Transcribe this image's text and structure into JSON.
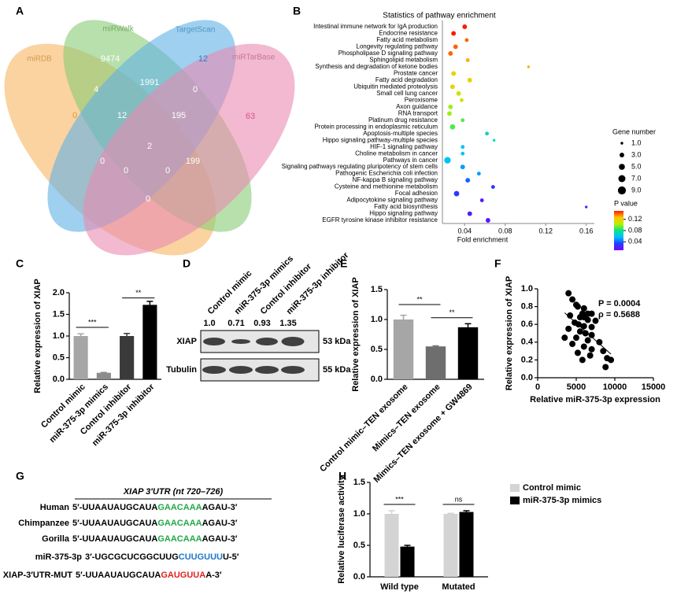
{
  "panel_labels": [
    "A",
    "B",
    "C",
    "D",
    "E",
    "F",
    "G",
    "H"
  ],
  "venn": {
    "sets": [
      {
        "name": "miRDB",
        "color": "#f7b560"
      },
      {
        "name": "miRWalk",
        "color": "#88cc74"
      },
      {
        "name": "TargetScan",
        "color": "#5fb0e6"
      },
      {
        "name": "miRTarBase",
        "color": "#e98ab0"
      }
    ],
    "counts": [
      0,
      9474,
      12,
      63,
      4,
      1991,
      0,
      12,
      195,
      2,
      0,
      0,
      0,
      199,
      0
    ]
  },
  "chart_data": [
    {
      "type": "bubble",
      "title": "Statistics of pathway enrichment",
      "categories": [
        "Intestinal immune network for IgA production",
        "Endocrine resistance",
        "Fatty acid metabolism",
        "Longevity regulating pathway",
        "Phospholipase D signaling pathway",
        "Sphingolipid metabolism",
        "Synthesis and degradation of ketone bodies",
        "Prostate cancer",
        "Fatty acid degradation",
        "Ubiquitin mediated proteolysis",
        "Small cell lung cancer",
        "Peroxisome",
        "Axon guidance",
        "RNA transport",
        "Platinum drug resistance",
        "Protein processing in endoplasmic reticulum",
        "Apoptosis-multiple species",
        "Hippo signaling pathway-multiple species",
        "HIF-1 signaling pathway",
        "Choline metabolism in cancer",
        "Pathways in cancer",
        "Signaling pathways regulating pluripotency of stem cells",
        "Pathogenic Escherichia coli infection",
        "NF-kappa B signaling pathway",
        "Cysteine and methionine metabolism",
        "Focal adhesion",
        "Adipocytokine signaling pathway",
        "Fatty acid biosynthesis",
        "Hippo signaling pathway",
        "EGFR tyrosine kinase inhibitor resistance"
      ],
      "values": [
        0.04,
        0.029,
        0.042,
        0.031,
        0.026,
        0.043,
        0.103,
        0.029,
        0.045,
        0.028,
        0.034,
        0.037,
        0.026,
        0.025,
        0.038,
        0.028,
        0.062,
        0.069,
        0.038,
        0.038,
        0.023,
        0.038,
        0.054,
        0.043,
        0.068,
        0.032,
        0.057,
        0.16,
        0.045,
        0.063
      ],
      "sizes": [
        3,
        3,
        2,
        3,
        3,
        2,
        1,
        3,
        3,
        3,
        3,
        2,
        3,
        3,
        2,
        4,
        2,
        1,
        2,
        2,
        6,
        3,
        2,
        3,
        2,
        4,
        2,
        1,
        3,
        3
      ],
      "pvalues": [
        0.15,
        0.15,
        0.14,
        0.14,
        0.14,
        0.13,
        0.13,
        0.12,
        0.12,
        0.12,
        0.11,
        0.11,
        0.1,
        0.1,
        0.09,
        0.09,
        0.07,
        0.07,
        0.06,
        0.06,
        0.06,
        0.05,
        0.05,
        0.04,
        0.03,
        0.03,
        0.02,
        0.02,
        0.02,
        0.02
      ],
      "xlim": [
        0.018,
        0.168
      ],
      "xticks": [
        0.04,
        0.08,
        0.12,
        0.16
      ],
      "xlabel": "Fold enrichment",
      "size_legend": {
        "title": "Gene number",
        "values": [
          {
            "value": 1,
            "label": "1.0"
          },
          {
            "value": 3,
            "label": "3.0"
          },
          {
            "value": 5,
            "label": "5.0"
          },
          {
            "value": 7,
            "label": "7.0"
          },
          {
            "value": 9,
            "label": "9.0"
          }
        ]
      },
      "color_legend": {
        "title": "P value",
        "ticks": [
          0.04,
          0.08,
          0.12
        ]
      },
      "colorscale": [
        "#7a00ff",
        "#1e40ff",
        "#00bfff",
        "#00e68a",
        "#b8f000",
        "#ffc400",
        "#ff1a00"
      ],
      "clim": [
        0.01,
        0.15
      ]
    },
    {
      "type": "bar",
      "categories": [
        "Control mimic",
        "miR-375-3p mimics",
        "Control inhibitor",
        "miR-375-3p inhibitor"
      ],
      "values": [
        1.0,
        0.15,
        1.0,
        1.72
      ],
      "errors": [
        0.05,
        0.01,
        0.06,
        0.08
      ],
      "colors": [
        "#a6a6a6",
        "#8c8c8c",
        "#3a3a3a",
        "#000000"
      ],
      "ylim": [
        0,
        2
      ],
      "yticks": [
        {
          "value": 0,
          "label": "0.0"
        },
        0.5,
        {
          "value": 1,
          "label": "1.0"
        },
        1.5,
        {
          "value": 2,
          "label": "2.0"
        }
      ],
      "ylabel": "Relative expression of  XIAP",
      "annotations": [
        "***",
        "**"
      ]
    },
    {
      "type": "bar",
      "categories": [
        "Control mimic–TEN exosome",
        "Mimics–TEN exosome",
        "Mimics–TEN exosome + GW4869"
      ],
      "values": [
        1.0,
        0.55,
        0.87
      ],
      "errors": [
        0.07,
        0.01,
        0.06
      ],
      "colors": [
        "#a6a6a6",
        "#6e6e6e",
        "#000000"
      ],
      "ylim": [
        0,
        1.5
      ],
      "yticks": [
        {
          "value": 0,
          "label": "0.0"
        },
        0.5,
        {
          "value": 1,
          "label": "1.0"
        },
        1.5
      ],
      "ylabel": "Relative expression of  XIAP",
      "annotations": [
        "**",
        "**"
      ]
    },
    {
      "type": "scatter",
      "x": [
        4000,
        4500,
        5000,
        5200,
        6000,
        5800,
        6500,
        7000,
        4200,
        5500,
        6500,
        7500,
        4800,
        5300,
        6000,
        7000,
        4000,
        5500,
        6200,
        7000,
        3500,
        5000,
        6500,
        8000,
        4500,
        6000,
        7000,
        8500,
        5200,
        6800,
        9000,
        9500,
        5800,
        8800,
        6000
      ],
      "values": [
        0.95,
        0.88,
        0.82,
        0.8,
        0.78,
        0.72,
        0.72,
        0.72,
        0.7,
        0.68,
        0.65,
        0.64,
        0.62,
        0.6,
        0.58,
        0.57,
        0.55,
        0.52,
        0.5,
        0.48,
        0.45,
        0.45,
        0.42,
        0.4,
        0.38,
        0.35,
        0.32,
        0.3,
        0.28,
        0.25,
        0.22,
        0.2,
        0.2,
        0.12,
        0.68
      ],
      "color": "#000000",
      "trendline": true,
      "xlim": [
        0,
        15000
      ],
      "xticks": [
        0,
        5000,
        10000,
        15000
      ],
      "ylim": [
        0,
        1
      ],
      "yticks": [
        {
          "value": 0,
          "label": "0.0"
        },
        0.2,
        0.4,
        0.6,
        0.8,
        {
          "value": 1,
          "label": "1.0"
        }
      ],
      "xlabel": "Relative miR-375-3p expression",
      "ylabel": "Relative expression of  XIAP",
      "annotations": [
        "P = 0.0004",
        "ρ = 0.5688"
      ]
    },
    {
      "type": "grouped_bar",
      "categories": [
        "Wild type",
        "Mutated"
      ],
      "series": [
        {
          "name": "Control mimic",
          "color": "#d4d4d4",
          "values": [
            1.0,
            1.0
          ],
          "errors": [
            0.05,
            0.01
          ]
        },
        {
          "name": "miR-375-3p mimics",
          "color": "#000000",
          "values": [
            0.48,
            1.03
          ],
          "errors": [
            0.02,
            0.02
          ]
        }
      ],
      "ylim": [
        0,
        1.5
      ],
      "yticks": [
        {
          "value": 0,
          "label": "0.0"
        },
        0.5,
        {
          "value": 1,
          "label": "1.0"
        },
        1.5
      ],
      "ylabel": "Relative luciferase activity",
      "annotations": [
        "***",
        "ns"
      ],
      "legend": "right"
    }
  ],
  "blot": {
    "headers": [
      "Control mimic",
      "miR-375-3p mimics",
      "Control inhibitor",
      "miR-375-3p inhibitor"
    ],
    "ratios": [
      "1.0",
      "0.71",
      "0.93",
      "1.35"
    ],
    "rows": [
      {
        "name": "XIAP",
        "size": "53 kDa"
      },
      {
        "name": "Tubulin",
        "size": "55 kDa"
      }
    ]
  },
  "sequences": {
    "title": "XIAP 3′UTR (nt 720–726)",
    "rows": [
      {
        "name": "Human",
        "prefix": "5′-UUAAUAUGCAUA",
        "site": "GAACAAA",
        "suffix": "AGAU-3′",
        "site_color": "#22a846"
      },
      {
        "name": "Chimpanzee",
        "prefix": "5′-UUAAUAUGCAUA",
        "site": "GAACAAA",
        "suffix": "AGAU-3′",
        "site_color": "#22a846"
      },
      {
        "name": "Gorilla",
        "prefix": "5′-UUAAUAUGCAUA",
        "site": "GAACAAA",
        "suffix": "AGAU-3′",
        "site_color": "#22a846"
      },
      {
        "name": "miR-375-3p",
        "prefix": "3′-UGCGCUCGGCUUG",
        "site": "CUUGUUU",
        "suffix": "U-5′",
        "site_color": "#1e78c8"
      },
      {
        "name": "XIAP-3′UTR-MUT",
        "prefix": "5′-UUAAUAUGCAUA",
        "site": "GAUGUUA",
        "suffix": "A-3′",
        "site_color": "#e02020"
      }
    ]
  }
}
